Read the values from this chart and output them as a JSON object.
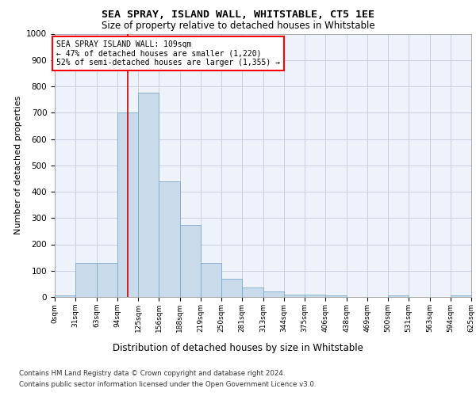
{
  "title": "SEA SPRAY, ISLAND WALL, WHITSTABLE, CT5 1EE",
  "subtitle": "Size of property relative to detached houses in Whitstable",
  "xlabel": "Distribution of detached houses by size in Whitstable",
  "ylabel": "Number of detached properties",
  "footer_line1": "Contains HM Land Registry data © Crown copyright and database right 2024.",
  "footer_line2": "Contains public sector information licensed under the Open Government Licence v3.0.",
  "bar_color": "#c9daea",
  "bar_edge_color": "#7aaac8",
  "background_color": "#eef2fa",
  "grid_color": "#c8cfe0",
  "annotation_text": "SEA SPRAY ISLAND WALL: 109sqm\n← 47% of detached houses are smaller (1,220)\n52% of semi-detached houses are larger (1,355) →",
  "vline_x": 109,
  "vline_color": "#cc0000",
  "ylim": [
    0,
    1000
  ],
  "yticks": [
    0,
    100,
    200,
    300,
    400,
    500,
    600,
    700,
    800,
    900,
    1000
  ],
  "bin_edges": [
    0,
    31,
    63,
    94,
    125,
    156,
    188,
    219,
    250,
    281,
    313,
    344,
    375,
    406,
    438,
    469,
    500,
    531,
    563,
    594,
    625
  ],
  "bar_heights": [
    5,
    128,
    128,
    700,
    775,
    440,
    275,
    130,
    70,
    35,
    20,
    10,
    10,
    5,
    0,
    0,
    5,
    0,
    0,
    5
  ],
  "tick_labels": [
    "0sqm",
    "31sqm",
    "63sqm",
    "94sqm",
    "125sqm",
    "156sqm",
    "188sqm",
    "219sqm",
    "250sqm",
    "281sqm",
    "313sqm",
    "344sqm",
    "375sqm",
    "406sqm",
    "438sqm",
    "469sqm",
    "500sqm",
    "531sqm",
    "563sqm",
    "594sqm",
    "625sqm"
  ]
}
